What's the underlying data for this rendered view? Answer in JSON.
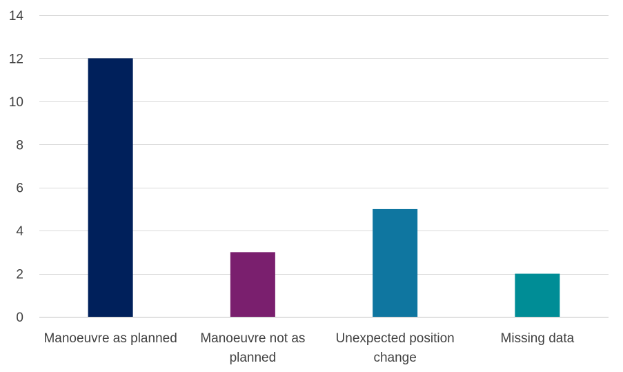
{
  "chart_data": {
    "type": "bar",
    "title": "",
    "xlabel": "",
    "ylabel": "",
    "categories": [
      "Manoeuvre as planned",
      "Manoeuvre not as planned",
      "Unexpected position change",
      "Missing data"
    ],
    "category_lines": [
      [
        "Manoeuvre as planned"
      ],
      [
        "Manoeuvre not as",
        "planned"
      ],
      [
        "Unexpected position",
        "change"
      ],
      [
        "Missing data"
      ]
    ],
    "values": [
      12,
      3,
      5,
      2
    ],
    "colors": [
      "#00205B",
      "#7A1F6E",
      "#0F76A0",
      "#008D96"
    ],
    "ylim": [
      0,
      14
    ],
    "yticks": [
      0,
      2,
      4,
      6,
      8,
      10,
      12,
      14
    ],
    "grid": true,
    "legend": "none"
  }
}
